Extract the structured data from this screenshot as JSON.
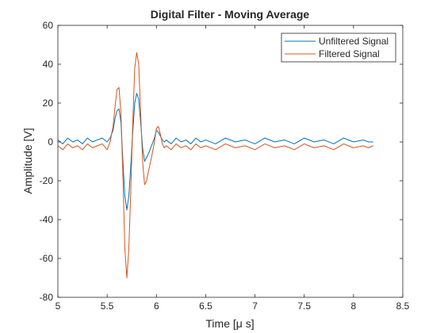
{
  "chart_data": {
    "type": "line",
    "title": "Digital Filter - Moving Average",
    "xlabel": "Time [μ s]",
    "ylabel": "Amplitude [V]",
    "xlim": [
      5,
      8.5
    ],
    "ylim": [
      -80,
      60
    ],
    "xticks": [
      "5",
      "5.5",
      "6",
      "6.5",
      "7",
      "7.5",
      "8",
      "8.5"
    ],
    "yticks": [
      "60",
      "40",
      "20",
      "0",
      "-20",
      "-40",
      "-60",
      "-80"
    ],
    "grid": false,
    "legend_position": "top-right",
    "series": [
      {
        "name": "Unfiltered Signal",
        "color": "#0072BD",
        "x": [
          5.0,
          5.05,
          5.1,
          5.15,
          5.2,
          5.25,
          5.3,
          5.35,
          5.4,
          5.45,
          5.5,
          5.53,
          5.56,
          5.58,
          5.6,
          5.62,
          5.64,
          5.66,
          5.68,
          5.7,
          5.72,
          5.74,
          5.76,
          5.78,
          5.8,
          5.82,
          5.84,
          5.86,
          5.88,
          5.9,
          5.92,
          5.95,
          5.98,
          6.0,
          6.02,
          6.04,
          6.06,
          6.08,
          6.1,
          6.15,
          6.2,
          6.25,
          6.3,
          6.35,
          6.4,
          6.45,
          6.5,
          6.6,
          6.7,
          6.8,
          6.9,
          7.0,
          7.1,
          7.2,
          7.3,
          7.4,
          7.5,
          7.6,
          7.7,
          7.8,
          7.9,
          8.0,
          8.1,
          8.15,
          8.2
        ],
        "y": [
          1,
          -1,
          2,
          0,
          1,
          -1,
          2,
          0,
          1,
          2,
          0,
          2,
          6,
          12,
          16,
          17,
          10,
          -10,
          -28,
          -35,
          -28,
          -12,
          5,
          20,
          25,
          22,
          10,
          -3,
          -10,
          -8,
          -6,
          -2,
          2,
          6,
          5,
          3,
          1,
          0,
          1,
          -1,
          2,
          0,
          1,
          -1,
          2,
          0,
          1,
          -1,
          2,
          0,
          1,
          -1,
          2,
          0,
          1,
          -1,
          2,
          0,
          1,
          -1,
          2,
          0,
          1,
          0,
          0
        ]
      },
      {
        "name": "Filtered Signal",
        "color": "#D95319",
        "x": [
          5.0,
          5.05,
          5.1,
          5.15,
          5.2,
          5.25,
          5.3,
          5.35,
          5.4,
          5.45,
          5.5,
          5.53,
          5.56,
          5.58,
          5.6,
          5.62,
          5.64,
          5.66,
          5.68,
          5.7,
          5.72,
          5.74,
          5.76,
          5.78,
          5.8,
          5.82,
          5.84,
          5.86,
          5.88,
          5.9,
          5.92,
          5.95,
          5.98,
          6.0,
          6.02,
          6.04,
          6.06,
          6.08,
          6.1,
          6.15,
          6.2,
          6.25,
          6.3,
          6.35,
          6.4,
          6.45,
          6.5,
          6.6,
          6.7,
          6.8,
          6.9,
          7.0,
          7.1,
          7.2,
          7.3,
          7.4,
          7.5,
          7.6,
          7.7,
          7.8,
          7.9,
          8.0,
          8.1,
          8.15,
          8.2
        ],
        "y": [
          -2,
          -4,
          -1,
          -3,
          -2,
          -4,
          -1,
          -3,
          -2,
          -1,
          -4,
          0,
          8,
          18,
          27,
          28,
          15,
          -18,
          -55,
          -70,
          -55,
          -25,
          10,
          38,
          46,
          40,
          15,
          -10,
          -22,
          -20,
          -15,
          -8,
          0,
          7,
          8,
          4,
          -1,
          -3,
          -2,
          -4,
          -1,
          -3,
          -2,
          -4,
          -1,
          -3,
          -2,
          -4,
          -1,
          -3,
          -2,
          -4,
          -1,
          -3,
          -2,
          -4,
          -1,
          -3,
          -2,
          -4,
          -1,
          -3,
          -2,
          -3,
          -2
        ]
      }
    ]
  }
}
